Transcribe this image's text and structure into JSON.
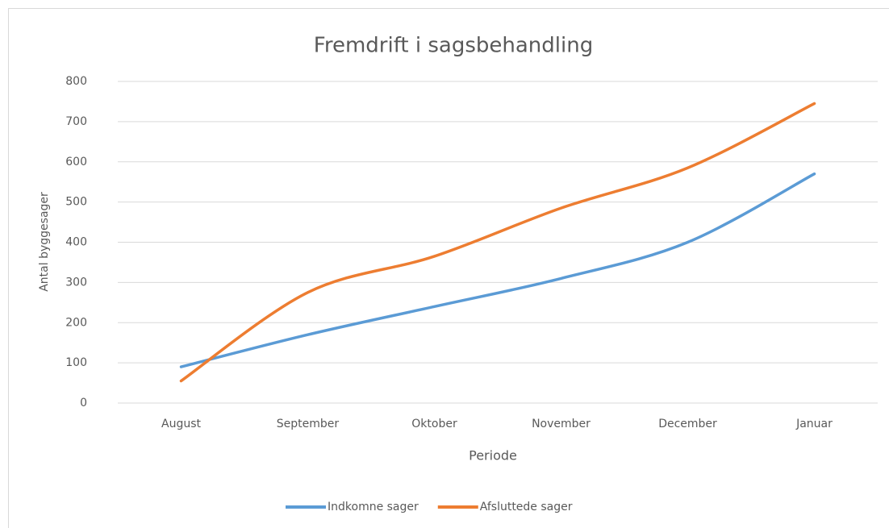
{
  "chart_data": {
    "type": "line",
    "title": "Fremdrift i sagsbehandling",
    "x_label": "Periode",
    "y_label": "Antal byggesager",
    "categories": [
      "August",
      "September",
      "Oktober",
      "November",
      "December",
      "Januar"
    ],
    "series": [
      {
        "name": "Indkomne sager",
        "color": "#5b9bd5",
        "values": [
          90,
          170,
          240,
          310,
          400,
          570
        ]
      },
      {
        "name": "Afsluttede sager",
        "color": "#ed7d31",
        "values": [
          55,
          275,
          365,
          485,
          585,
          745
        ]
      }
    ],
    "ylim": [
      0,
      800
    ],
    "yticks": [
      0,
      100,
      200,
      300,
      400,
      500,
      600,
      700,
      800
    ],
    "grid": true,
    "legend": "bottom"
  }
}
